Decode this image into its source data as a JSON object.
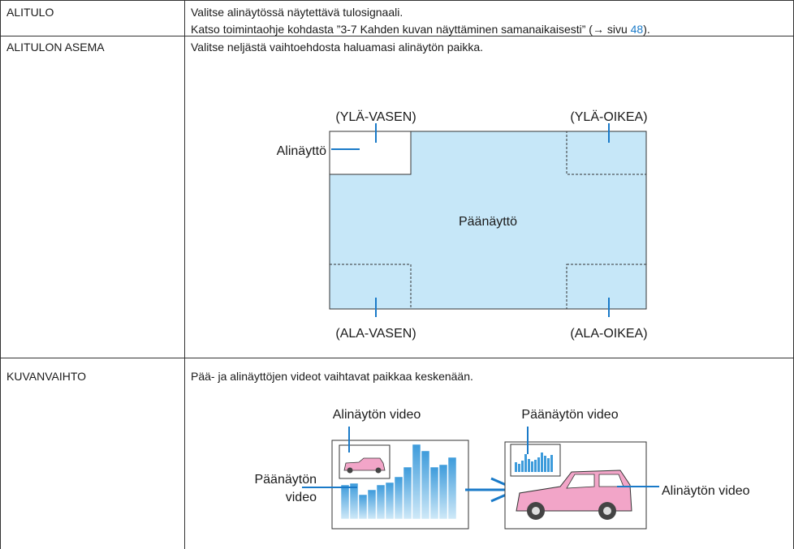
{
  "rows": [
    {
      "term": "ALITULO",
      "description": [
        "Valitse alinäytössä näytettävä tulosignaali.",
        {
          "text": "Katso toimintaohje kohdasta ”3-7 Kahden kuvan näyttäminen samanaikaisesti” (→ sivu ",
          "link": "48",
          "after": ")."
        }
      ]
    },
    {
      "term": "ALITULON ASEMA",
      "description": [
        "Valitse neljästä vaihtoehdosta haluamasi alinäytön paikka."
      ],
      "diagram": {
        "top_left": "(YLÄ-VASEN)",
        "top_right": "(YLÄ-OIKEA)",
        "sub_screen": "Alinäyttö",
        "main_screen": "Päänäyttö",
        "bottom_left": "(ALA-VASEN)",
        "bottom_right": "(ALA-OIKEA)"
      }
    },
    {
      "term": "KUVANVAIHTO",
      "description": [
        "Pää- ja alinäyttöjen videot vaihtavat paikkaa keskenään."
      ],
      "diagram": {
        "before_sub": "Alinäytön video",
        "before_main": [
          "Päänäytön",
          "video"
        ],
        "after_main": "Päänäytön video",
        "after_sub": "Alinäytön video"
      }
    }
  ]
}
